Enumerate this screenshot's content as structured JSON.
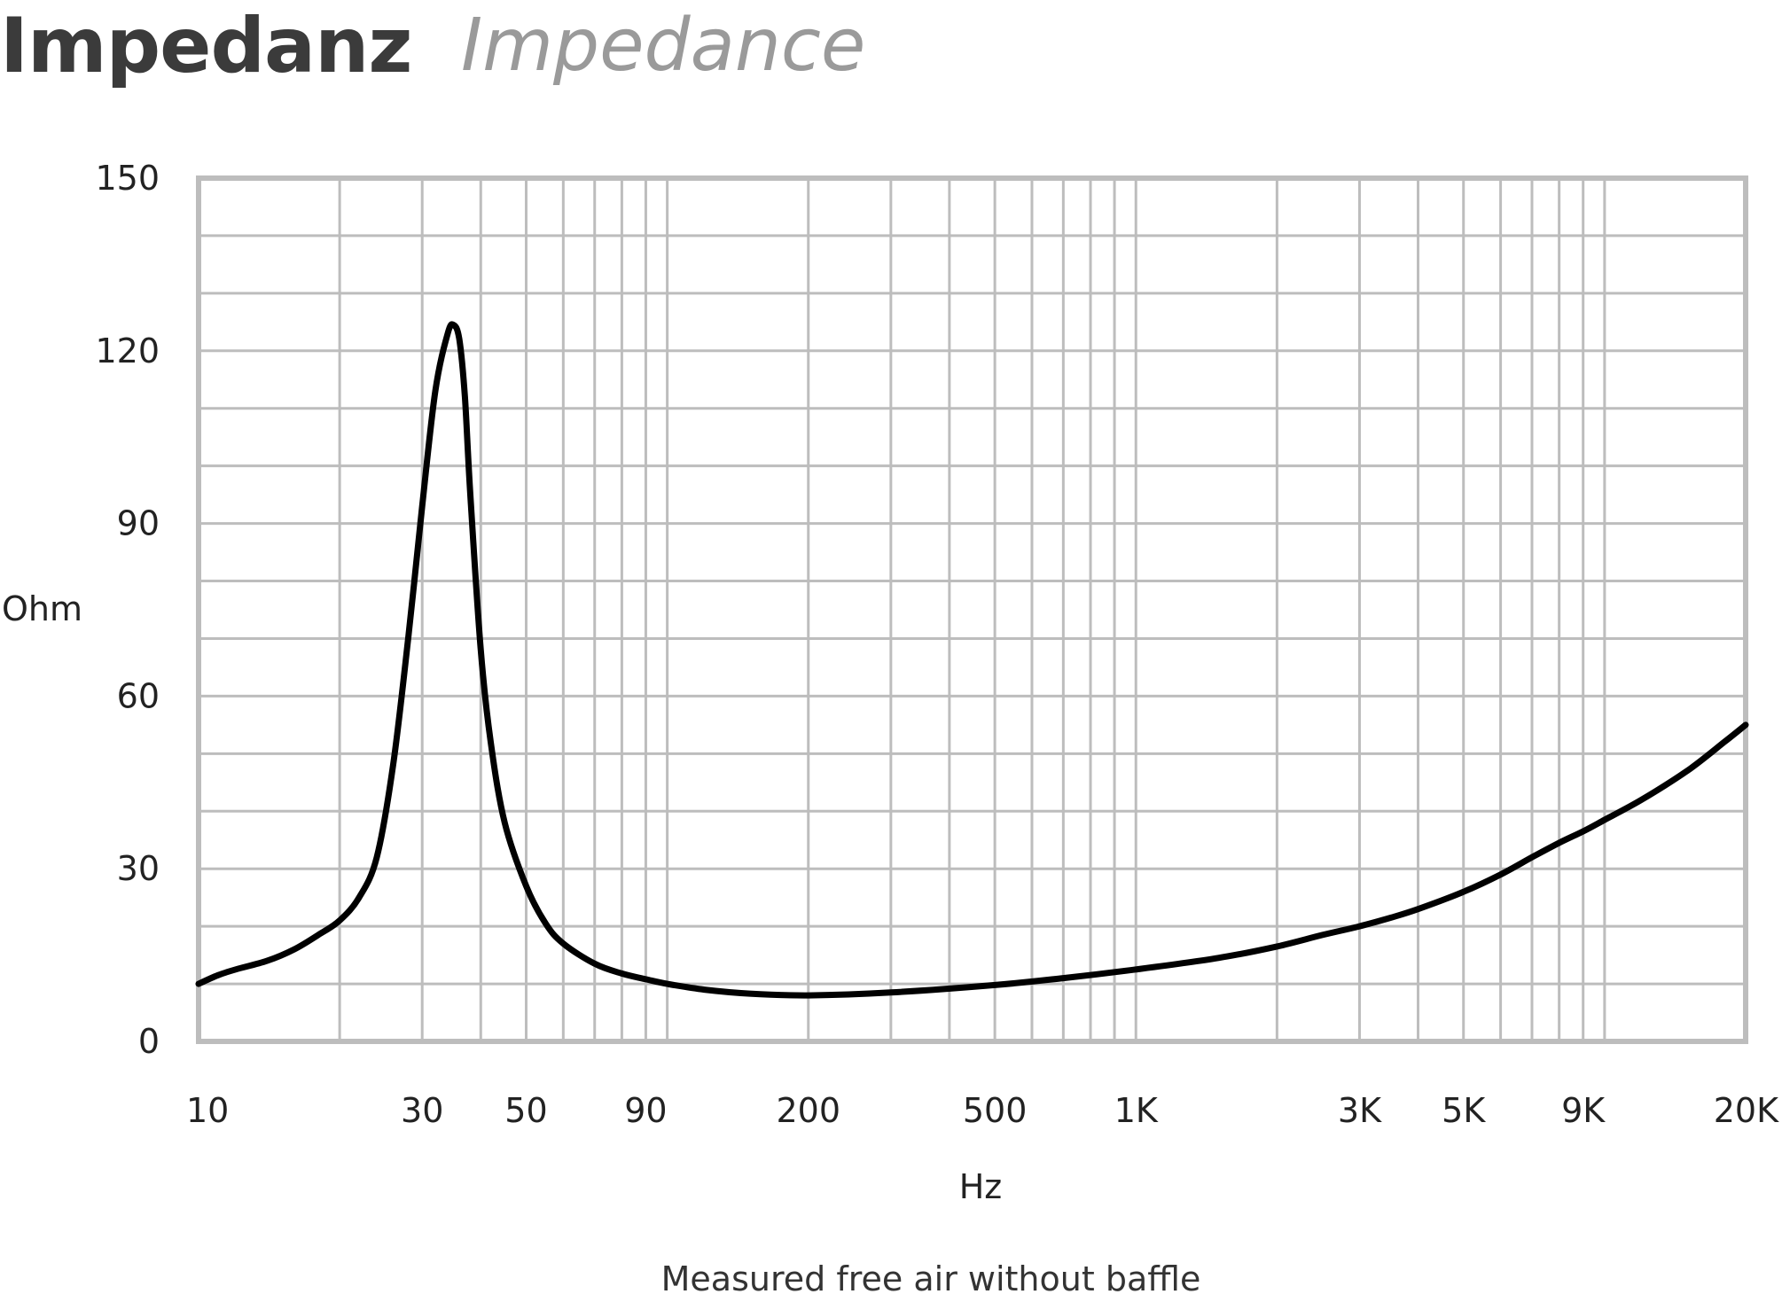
{
  "header": {
    "title_de": "Impedanz",
    "title_en": "Impedance"
  },
  "note": "Measured free air without baffle",
  "colors": {
    "grid": "#bdbdbd",
    "curve": "#000000",
    "title_de": "#3b3b3b",
    "title_en": "#9a9a9a"
  },
  "chart_data": {
    "type": "line",
    "title": "",
    "xlabel": "Hz",
    "ylabel": "Ohm",
    "x_scale": "log",
    "xlim": [
      10,
      20000
    ],
    "ylim": [
      0,
      150
    ],
    "grid": true,
    "legend": "none",
    "x_ticks": [
      {
        "value": 10,
        "label": "10"
      },
      {
        "value": 30,
        "label": "30"
      },
      {
        "value": 50,
        "label": "50"
      },
      {
        "value": 90,
        "label": "90"
      },
      {
        "value": 200,
        "label": "200"
      },
      {
        "value": 500,
        "label": "500"
      },
      {
        "value": 1000,
        "label": "1K"
      },
      {
        "value": 3000,
        "label": "3K"
      },
      {
        "value": 5000,
        "label": "5K"
      },
      {
        "value": 9000,
        "label": "9K"
      },
      {
        "value": 20000,
        "label": "20K"
      }
    ],
    "y_ticks": [
      {
        "value": 0,
        "label": "0"
      },
      {
        "value": 30,
        "label": "30"
      },
      {
        "value": 60,
        "label": "60"
      },
      {
        "value": 90,
        "label": "90"
      },
      {
        "value": 120,
        "label": "120"
      },
      {
        "value": 150,
        "label": "150"
      }
    ],
    "x_grid": [
      10,
      20,
      30,
      40,
      50,
      60,
      70,
      80,
      90,
      100,
      200,
      300,
      400,
      500,
      600,
      700,
      800,
      900,
      1000,
      2000,
      3000,
      4000,
      5000,
      6000,
      7000,
      8000,
      9000,
      10000,
      20000
    ],
    "y_grid": [
      0,
      10,
      20,
      30,
      40,
      50,
      60,
      70,
      80,
      90,
      100,
      110,
      120,
      130,
      140,
      150
    ],
    "series": [
      {
        "name": "",
        "x": [
          10,
          11,
          12,
          14,
          16,
          18,
          20,
          22,
          24,
          26,
          28,
          30,
          32,
          34,
          35,
          36,
          37,
          38,
          40,
          42,
          45,
          50,
          55,
          60,
          70,
          80,
          90,
          100,
          120,
          150,
          200,
          300,
          500,
          700,
          1000,
          1500,
          2000,
          2500,
          3000,
          3500,
          4000,
          5000,
          6000,
          7000,
          8000,
          9000,
          10000,
          12000,
          15000,
          18000,
          20000
        ],
        "y": [
          10,
          11.5,
          12.5,
          14,
          16,
          18.5,
          21,
          25,
          32,
          48,
          70,
          93,
          113,
          123,
          124.5,
          122,
          112,
          95,
          68,
          52,
          38,
          27,
          20.5,
          17,
          13.5,
          11.8,
          10.8,
          10,
          9,
          8.3,
          8,
          8.5,
          9.8,
          11,
          12.5,
          14.5,
          16.5,
          18.5,
          20,
          21.5,
          23,
          26,
          29,
          32,
          34.5,
          36.5,
          38.5,
          42,
          47,
          52,
          55
        ]
      }
    ]
  }
}
